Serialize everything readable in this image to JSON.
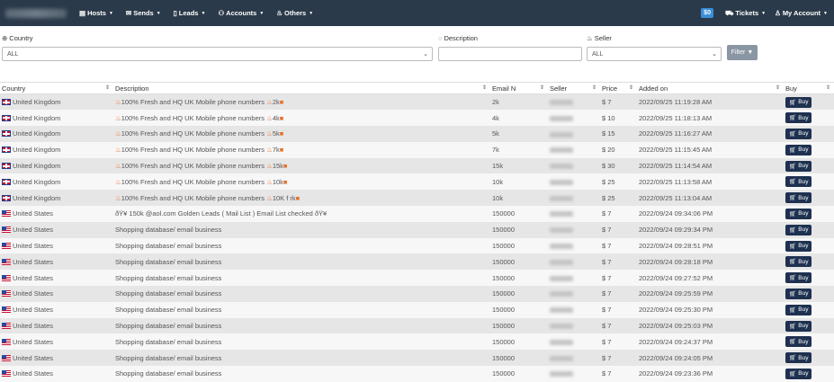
{
  "nav": {
    "menu": [
      {
        "icon": "server-icon",
        "label": "Hosts"
      },
      {
        "icon": "envelope-icon",
        "label": "Sends"
      },
      {
        "icon": "file-icon",
        "label": "Leads"
      },
      {
        "icon": "users-icon",
        "label": "Accounts"
      },
      {
        "icon": "fire-icon",
        "label": "Others"
      }
    ],
    "balance": "$0",
    "tickets_label": "Tickets",
    "account_label": "My Account"
  },
  "filters": {
    "country_label": "Country",
    "country_value": "ALL",
    "description_label": "Description",
    "seller_label": "Seller",
    "seller_value": "ALL",
    "filter_label": "Filter"
  },
  "table": {
    "headers": [
      "Country",
      "Description",
      "Email N",
      "Seller",
      "Price",
      "Added on",
      "Buy"
    ],
    "buy_label": "Buy",
    "rows": [
      {
        "flag": "uk",
        "country": "United Kingdom",
        "fire": true,
        "description": "100% Fresh and HQ UK Mobile phone numbers",
        "suffix": "2k",
        "email_n": "2k",
        "price": "$ 7",
        "added": "2022/09/25 11:19:28 AM"
      },
      {
        "flag": "uk",
        "country": "United Kingdom",
        "fire": true,
        "description": "100% Fresh and HQ UK Mobile phone numbers",
        "suffix": "4k",
        "email_n": "4k",
        "price": "$ 10",
        "added": "2022/09/25 11:18:13 AM"
      },
      {
        "flag": "uk",
        "country": "United Kingdom",
        "fire": true,
        "description": "100% Fresh and HQ UK Mobile phone numbers",
        "suffix": "5k",
        "email_n": "5k",
        "price": "$ 15",
        "added": "2022/09/25 11:16:27 AM"
      },
      {
        "flag": "uk",
        "country": "United Kingdom",
        "fire": true,
        "description": "100% Fresh and HQ UK Mobile phone numbers",
        "suffix": "7k",
        "email_n": "7k",
        "price": "$ 20",
        "added": "2022/09/25 11:15:45 AM"
      },
      {
        "flag": "uk",
        "country": "United Kingdom",
        "fire": true,
        "description": "100% Fresh and HQ UK Mobile phone numbers",
        "suffix": "15k",
        "email_n": "15k",
        "price": "$ 30",
        "added": "2022/09/25 11:14:54 AM"
      },
      {
        "flag": "uk",
        "country": "United Kingdom",
        "fire": true,
        "description": "100% Fresh and HQ UK Mobile phone numbers",
        "suffix": "10k",
        "email_n": "10k",
        "price": "$ 25",
        "added": "2022/09/25 11:13:58 AM"
      },
      {
        "flag": "uk",
        "country": "United Kingdom",
        "fire": true,
        "description": "100% Fresh and HQ UK Mobile phone numbers",
        "suffix": "10K f rk",
        "email_n": "10k",
        "price": "$ 25",
        "added": "2022/09/25 11:13:04 AM"
      },
      {
        "flag": "us",
        "country": "United States",
        "fire": false,
        "description": "ðŸ¥ 150k @aol.com Golden Leads ( Mail List ) Email List checked ðŸ¥",
        "suffix": "",
        "email_n": "150000",
        "price": "$ 7",
        "added": "2022/09/24 09:34:06 PM"
      },
      {
        "flag": "us",
        "country": "United States",
        "fire": false,
        "description": "Shopping database/ email business",
        "suffix": "",
        "email_n": "150000",
        "price": "$ 7",
        "added": "2022/09/24 09:29:34 PM"
      },
      {
        "flag": "us",
        "country": "United States",
        "fire": false,
        "description": "Shopping database/ email business",
        "suffix": "",
        "email_n": "150000",
        "price": "$ 7",
        "added": "2022/09/24 09:28:51 PM"
      },
      {
        "flag": "us",
        "country": "United States",
        "fire": false,
        "description": "Shopping database/ email business",
        "suffix": "",
        "email_n": "150000",
        "price": "$ 7",
        "added": "2022/09/24 09:28:18 PM"
      },
      {
        "flag": "us",
        "country": "United States",
        "fire": false,
        "description": "Shopping database/ email business",
        "suffix": "",
        "email_n": "150000",
        "price": "$ 7",
        "added": "2022/09/24 09:27:52 PM"
      },
      {
        "flag": "us",
        "country": "United States",
        "fire": false,
        "description": "Shopping database/ email business",
        "suffix": "",
        "email_n": "150000",
        "price": "$ 7",
        "added": "2022/09/24 09:25:59 PM"
      },
      {
        "flag": "us",
        "country": "United States",
        "fire": false,
        "description": "Shopping database/ email business",
        "suffix": "",
        "email_n": "150000",
        "price": "$ 7",
        "added": "2022/09/24 09:25:30 PM"
      },
      {
        "flag": "us",
        "country": "United States",
        "fire": false,
        "description": "Shopping database/ email business",
        "suffix": "",
        "email_n": "150000",
        "price": "$ 7",
        "added": "2022/09/24 09:25:03 PM"
      },
      {
        "flag": "us",
        "country": "United States",
        "fire": false,
        "description": "Shopping database/ email business",
        "suffix": "",
        "email_n": "150000",
        "price": "$ 7",
        "added": "2022/09/24 09:24:37 PM"
      },
      {
        "flag": "us",
        "country": "United States",
        "fire": false,
        "description": "Shopping database/ email business",
        "suffix": "",
        "email_n": "150000",
        "price": "$ 7",
        "added": "2022/09/24 09:24:05 PM"
      },
      {
        "flag": "us",
        "country": "United States",
        "fire": false,
        "description": "Shopping database/ email business",
        "suffix": "",
        "email_n": "150000",
        "price": "$ 7",
        "added": "2022/09/24 09:23:36 PM"
      }
    ]
  }
}
